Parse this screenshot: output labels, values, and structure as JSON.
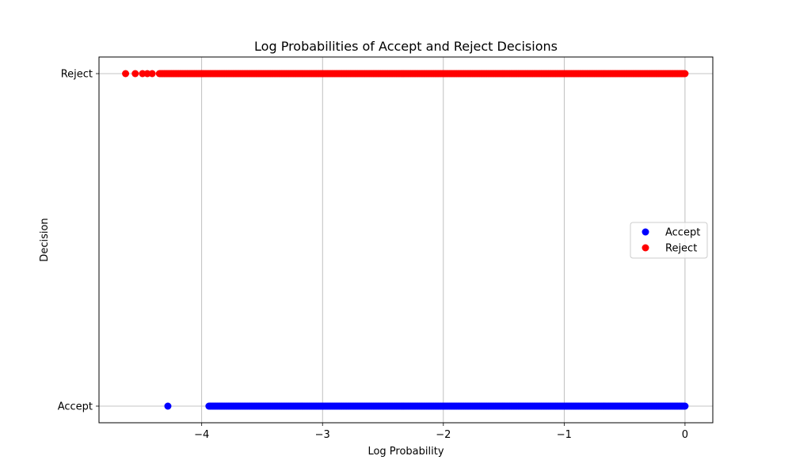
{
  "chart_data": {
    "type": "scatter",
    "title": "Log Probabilities of Accept and Reject Decisions",
    "xlabel": "Log Probability",
    "ylabel": "Decision",
    "xlim": [
      -4.85,
      0.23
    ],
    "xticks": [
      -4,
      -3,
      -2,
      -1,
      0
    ],
    "xtick_labels": [
      "−4",
      "−3",
      "−2",
      "−1",
      "0"
    ],
    "categories": [
      "Accept",
      "Reject"
    ],
    "grid": true,
    "legend_position": "center-right",
    "series": [
      {
        "name": "Accept",
        "category": "Accept",
        "color": "#0000ff",
        "x_outliers": [
          -4.28
        ],
        "x_range": [
          -3.94,
          0.0
        ]
      },
      {
        "name": "Reject",
        "category": "Reject",
        "color": "#ff0000",
        "x_outliers": [
          -4.63,
          -4.55,
          -4.49,
          -4.45,
          -4.41
        ],
        "x_range": [
          -4.35,
          0.0
        ]
      }
    ]
  }
}
